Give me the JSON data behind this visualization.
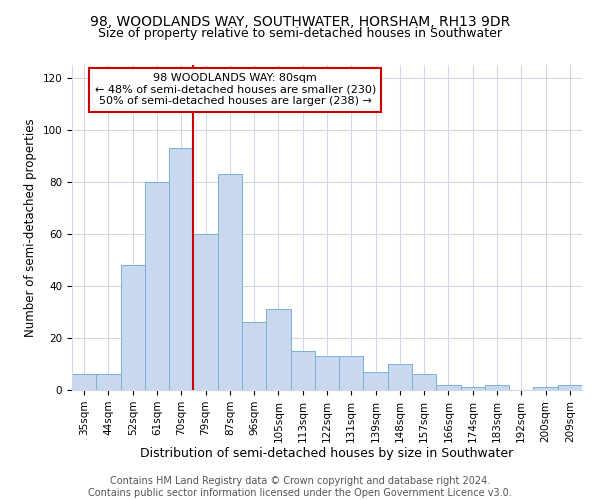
{
  "title": "98, WOODLANDS WAY, SOUTHWATER, HORSHAM, RH13 9DR",
  "subtitle": "Size of property relative to semi-detached houses in Southwater",
  "xlabel": "Distribution of semi-detached houses by size in Southwater",
  "ylabel": "Number of semi-detached properties",
  "categories": [
    "35sqm",
    "44sqm",
    "52sqm",
    "61sqm",
    "70sqm",
    "79sqm",
    "87sqm",
    "96sqm",
    "105sqm",
    "113sqm",
    "122sqm",
    "131sqm",
    "139sqm",
    "148sqm",
    "157sqm",
    "166sqm",
    "174sqm",
    "183sqm",
    "192sqm",
    "200sqm",
    "209sqm"
  ],
  "values": [
    6,
    6,
    48,
    80,
    93,
    60,
    83,
    26,
    31,
    15,
    13,
    13,
    7,
    10,
    6,
    2,
    1,
    2,
    0,
    1,
    2
  ],
  "bar_color": "#c8d9ef",
  "bar_edgecolor": "#7bafd4",
  "vline_x": 5.0,
  "vline_color": "#cc0000",
  "annotation_text": "98 WOODLANDS WAY: 80sqm\n← 48% of semi-detached houses are smaller (230)\n50% of semi-detached houses are larger (238) →",
  "annotation_box_edgecolor": "#cc0000",
  "annotation_box_facecolor": "#ffffff",
  "ylim": [
    0,
    125
  ],
  "yticks": [
    0,
    20,
    40,
    60,
    80,
    100,
    120
  ],
  "footer": "Contains HM Land Registry data © Crown copyright and database right 2024.\nContains public sector information licensed under the Open Government Licence v3.0.",
  "title_fontsize": 10,
  "subtitle_fontsize": 9,
  "xlabel_fontsize": 9,
  "ylabel_fontsize": 8.5,
  "tick_fontsize": 7.5,
  "footer_fontsize": 7,
  "bg_color": "#ffffff",
  "plot_bg_color": "#ffffff",
  "grid_color": "#d0d8e8"
}
